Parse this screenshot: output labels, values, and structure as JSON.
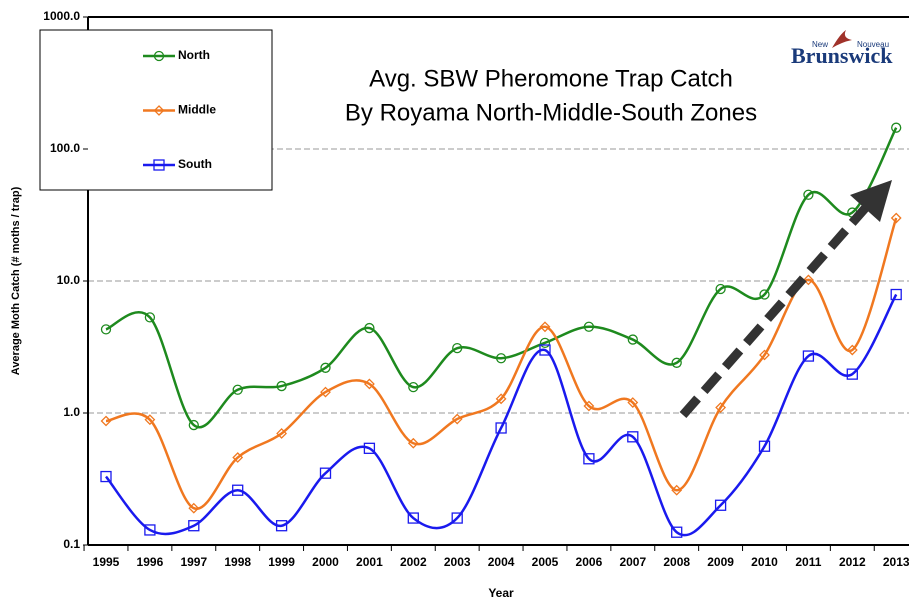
{
  "chart_data": {
    "type": "line",
    "title": [
      "Avg. SBW Pheromone Trap Catch",
      "By Royama North-Middle-South Zones"
    ],
    "logo": {
      "small_left": "New",
      "small_right": "Nouveau",
      "name": "Brunswick"
    },
    "x_label": "Year",
    "y_label": "Average Moth Catch (# moths / trap)",
    "categories": [
      "1995",
      "1996",
      "1997",
      "1998",
      "1999",
      "2000",
      "2001",
      "2002",
      "2003",
      "2004",
      "2005",
      "2006",
      "2007",
      "2008",
      "2009",
      "2010",
      "2011",
      "2012",
      "2013"
    ],
    "log_scale": true,
    "ylim": [
      0.1,
      1000
    ],
    "yticks": [
      0.1,
      {
        "value": 1,
        "label": "1.0"
      },
      {
        "value": 10,
        "label": "10.0"
      },
      {
        "value": 100,
        "label": "100.0"
      },
      {
        "value": 1000,
        "label": "1000.0"
      }
    ],
    "grid": true,
    "legend": "top-left",
    "series": [
      {
        "name": "North",
        "color": "#1e8a1e",
        "marker": "circle",
        "values": [
          4.3,
          5.3,
          0.81,
          1.5,
          1.6,
          2.2,
          4.4,
          1.57,
          3.1,
          2.6,
          3.4,
          4.5,
          3.6,
          2.4,
          8.7,
          7.9,
          45,
          33,
          145
        ]
      },
      {
        "name": "Middle",
        "color": "#f07820",
        "marker": "diamond",
        "values": [
          0.87,
          0.89,
          0.19,
          0.46,
          0.7,
          1.44,
          1.66,
          0.59,
          0.9,
          1.28,
          4.5,
          1.13,
          1.2,
          0.26,
          1.1,
          2.75,
          10.2,
          3.0,
          30
        ]
      },
      {
        "name": "South",
        "color": "#1a1aee",
        "marker": "square",
        "values": [
          0.33,
          0.13,
          0.14,
          0.26,
          0.14,
          0.35,
          0.54,
          0.16,
          0.16,
          0.77,
          3.0,
          0.45,
          0.66,
          0.125,
          0.2,
          0.56,
          2.7,
          1.97,
          7.9
        ]
      }
    ]
  }
}
